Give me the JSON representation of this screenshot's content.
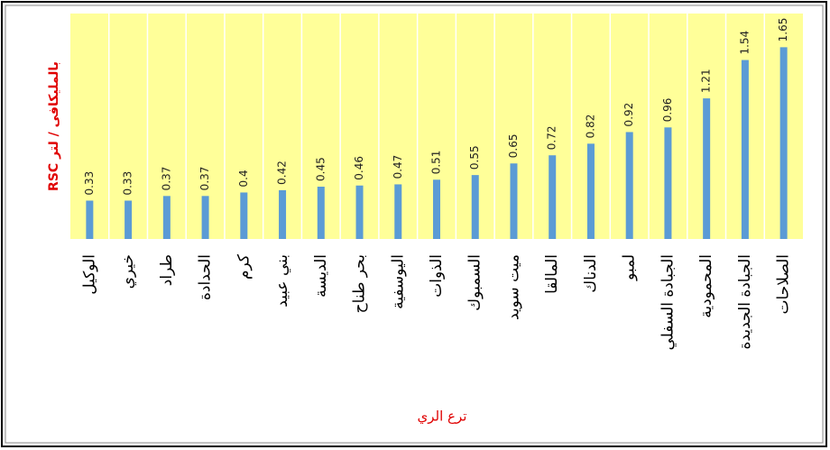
{
  "chart_data": {
    "type": "bar",
    "y_label": "RSC بالمليكافى / لتر",
    "x_label": "ترع الري",
    "categories": [
      "الوكيل",
      "خيري",
      "طراد",
      "الحدادة",
      "كرم",
      "بني عبيد",
      "الديسة",
      "بحر طناح",
      "اليوسفية",
      "الذوات",
      "السمبوك",
      "ميت سويد",
      "المالقا",
      "الدناك",
      "لمبو",
      "الجبادة السفلي",
      "المحمودية",
      "الجبادة الجديدة",
      "الصلاحات"
    ],
    "values": [
      0.33,
      0.33,
      0.37,
      0.37,
      0.4,
      0.42,
      0.45,
      0.46,
      0.47,
      0.51,
      0.55,
      0.65,
      0.72,
      0.82,
      0.92,
      0.96,
      1.21,
      1.54,
      1.65
    ],
    "color": "#5b9bd5",
    "ylim": [
      0,
      1.94
    ]
  }
}
